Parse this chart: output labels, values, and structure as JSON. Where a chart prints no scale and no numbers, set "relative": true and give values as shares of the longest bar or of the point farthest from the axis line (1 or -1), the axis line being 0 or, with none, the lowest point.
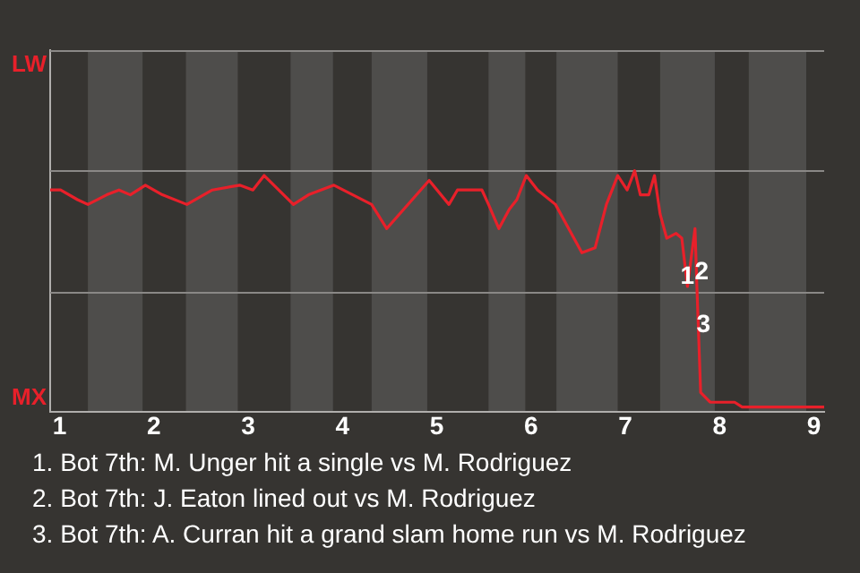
{
  "chart_data": {
    "type": "line",
    "color": "#e8202a",
    "marker": "none",
    "relative": true,
    "x": [
      0.9,
      1.01,
      1.19,
      1.3,
      1.5,
      1.63,
      1.75,
      1.91,
      2.09,
      2.35,
      2.62,
      2.91,
      3.05,
      3.17,
      3.48,
      3.64,
      3.91,
      4.11,
      4.31,
      4.47,
      4.92,
      5.13,
      5.22,
      5.48,
      5.55,
      5.66,
      5.77,
      5.85,
      5.95,
      6.07,
      6.26,
      6.54,
      6.68,
      6.8,
      6.92,
      7.02,
      7.1,
      7.16,
      7.25,
      7.31,
      7.37,
      7.44,
      7.54,
      7.6,
      7.66,
      7.74,
      7.76,
      7.78,
      7.8,
      7.9,
      8.02,
      8.08,
      8.16,
      8.24,
      8.4,
      9.06,
      9.11
    ],
    "values": [
      0.92,
      0.92,
      0.88,
      0.86,
      0.9,
      0.92,
      0.9,
      0.94,
      0.9,
      0.86,
      0.92,
      0.94,
      0.92,
      0.98,
      0.86,
      0.9,
      0.94,
      0.9,
      0.86,
      0.76,
      0.96,
      0.86,
      0.92,
      0.92,
      0.86,
      0.76,
      0.84,
      0.88,
      0.98,
      0.92,
      0.86,
      0.66,
      0.68,
      0.86,
      0.98,
      0.92,
      1,
      0.9,
      0.9,
      0.98,
      0.82,
      0.72,
      0.74,
      0.72,
      0.52,
      0.76,
      0.52,
      0.3,
      0.08,
      0.04,
      0.04,
      0.04,
      0.04,
      0.02,
      0.02,
      0.02,
      0.02
    ],
    "xlim": [
      0.9,
      9.11
    ],
    "xticks": [
      1,
      2,
      3,
      4,
      5,
      6,
      7,
      8,
      9
    ],
    "ref_lines": [
      {
        "axis": "y",
        "value": 0.5,
        "label": null,
        "color": "#8a8886"
      },
      {
        "axis": "y",
        "value": 1,
        "label": null,
        "color": "#8a8886"
      },
      {
        "axis": "y",
        "value": 1.5,
        "label": null,
        "color": "#8a8886"
      }
    ],
    "bands": [
      {
        "axis": "x",
        "from": 1.3,
        "to": 1.88,
        "label": null,
        "color": "#4e4d4b"
      },
      {
        "axis": "x",
        "from": 2.34,
        "to": 2.89,
        "label": null,
        "color": "#4e4d4b"
      },
      {
        "axis": "x",
        "from": 3.45,
        "to": 3.9,
        "label": null,
        "color": "#4e4d4b"
      },
      {
        "axis": "x",
        "from": 4.31,
        "to": 4.9,
        "label": null,
        "color": "#4e4d4b"
      },
      {
        "axis": "x",
        "from": 5.55,
        "to": 5.94,
        "label": null,
        "color": "#4e4d4b"
      },
      {
        "axis": "x",
        "from": 6.27,
        "to": 6.92,
        "label": null,
        "color": "#4e4d4b"
      },
      {
        "axis": "x",
        "from": 7.37,
        "to": 7.95,
        "label": null,
        "color": "#4e4d4b"
      },
      {
        "axis": "x",
        "from": 8.31,
        "to": 8.92,
        "label": null,
        "color": "#4e4d4b"
      }
    ],
    "annotations": [
      "LW",
      "MX",
      {
        "text": "1",
        "x": 7.66,
        "y": 0.56
      },
      {
        "text": "2",
        "x": 7.81,
        "y": 0.58
      },
      {
        "text": "3",
        "x": 7.83,
        "y": 0.36
      },
      "1. Bot 7th: M. Unger hit a single vs M. Rodriguez",
      "2. Bot 7th: J. Eaton lined out vs M. Rodriguez",
      "3. Bot 7th: A. Curran hit a grand slam home run vs M. Rodriguez"
    ]
  }
}
